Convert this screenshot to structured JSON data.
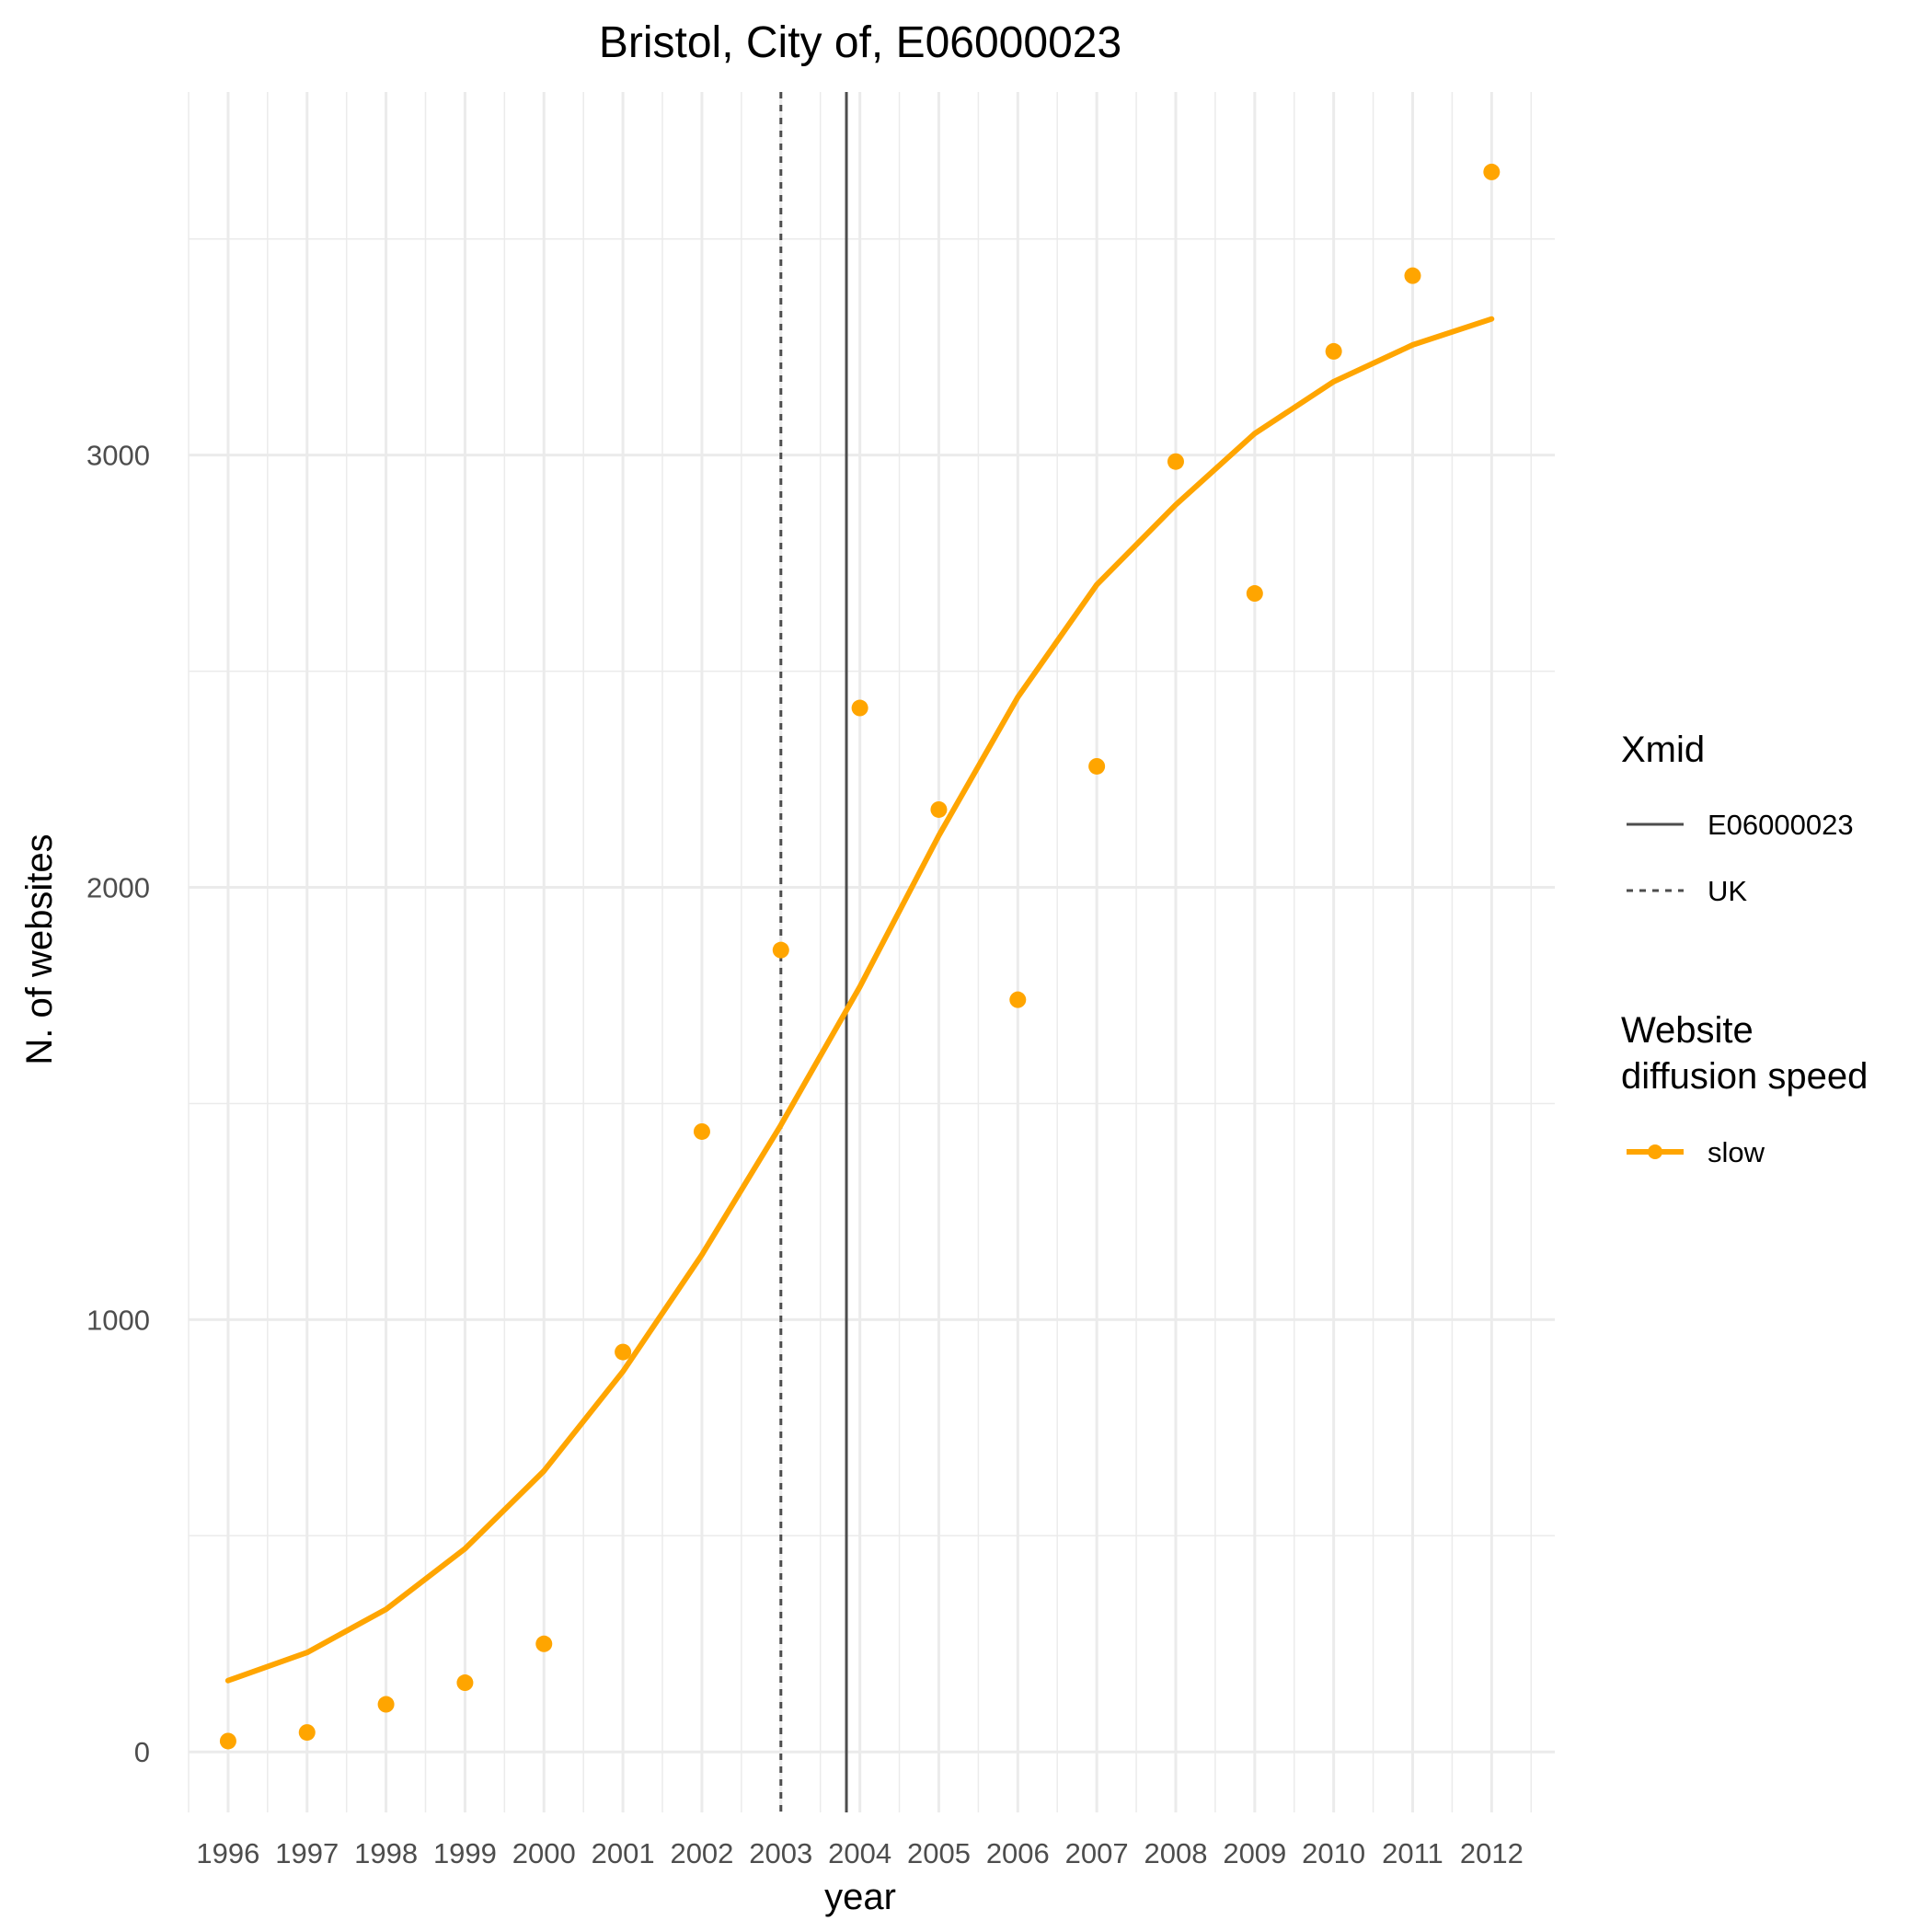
{
  "chart_data": {
    "type": "line",
    "title": "Bristol, City of, E06000023",
    "xlabel": "year",
    "ylabel": "N. of websites",
    "x": [
      1996,
      1997,
      1998,
      1999,
      2000,
      2001,
      2002,
      2003,
      2004,
      2005,
      2006,
      2007,
      2008,
      2009,
      2010,
      2011,
      2012
    ],
    "x_tick_labels": [
      "1996",
      "1997",
      "1998",
      "1999",
      "2000",
      "2001",
      "2002",
      "2003",
      "2004",
      "2005",
      "2006",
      "2007",
      "2008",
      "2009",
      "2010",
      "2011",
      "2012"
    ],
    "y_ticks": [
      0,
      1000,
      2000,
      3000
    ],
    "y_tick_labels": [
      "0",
      "1000",
      "2000",
      "3000"
    ],
    "xlim": [
      1995.5,
      2012.8
    ],
    "ylim": [
      -140,
      3840
    ],
    "grid": true,
    "series": [
      {
        "name": "slow",
        "color": "#FFA500",
        "points": [
          25,
          45,
          110,
          160,
          250,
          925,
          1435,
          1855,
          2415,
          2180,
          1740,
          2280,
          2985,
          2680,
          3240,
          3415,
          3655
        ],
        "fit": [
          165,
          230,
          330,
          470,
          650,
          880,
          1150,
          1450,
          1770,
          2120,
          2440,
          2700,
          2885,
          3050,
          3170,
          3255,
          3315
        ]
      }
    ],
    "vlines": [
      {
        "legend": "E06000023",
        "x": 2003.83,
        "style": "solid",
        "color": "#4d4d4d"
      },
      {
        "legend": "UK",
        "x": 2003.0,
        "style": "dashed",
        "color": "#4d4d4d"
      }
    ],
    "legend_placement": "right",
    "legends": [
      {
        "title": "Xmid",
        "entries": [
          "E06000023",
          "UK"
        ]
      },
      {
        "title_lines": [
          "Website",
          "diffusion speed"
        ],
        "entries": [
          "slow"
        ]
      }
    ]
  }
}
